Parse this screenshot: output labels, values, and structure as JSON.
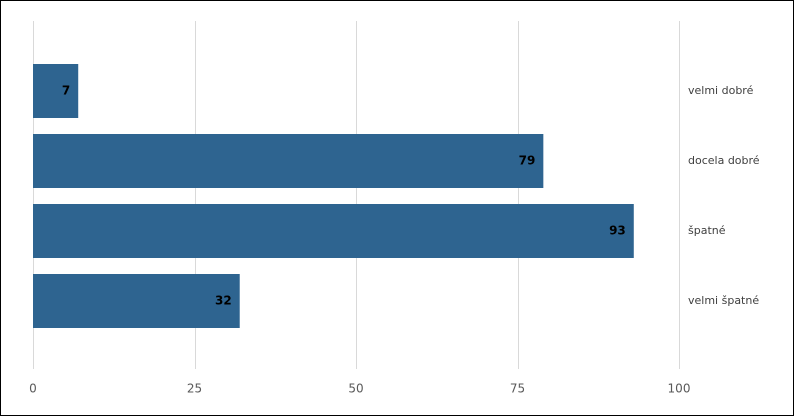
{
  "chart_data": {
    "type": "bar",
    "orientation": "horizontal",
    "categories": [
      "velmi dobré",
      "docela dobré",
      "špatné",
      "velmi špatné"
    ],
    "values": [
      7,
      79,
      93,
      32
    ],
    "title": "",
    "xlabel": "",
    "ylabel": "",
    "xlim": [
      0,
      100
    ],
    "xticks": [
      0,
      25,
      50,
      75,
      100
    ],
    "grid": "vertical",
    "legend": "none",
    "category_labels_position": "right",
    "data_labels": "inside-end",
    "colors": {
      "bar": "#2E6490",
      "grid": "#D9D9D9",
      "data_label": "#000000",
      "tick_label": "#595959",
      "category_label": "#404040"
    }
  }
}
